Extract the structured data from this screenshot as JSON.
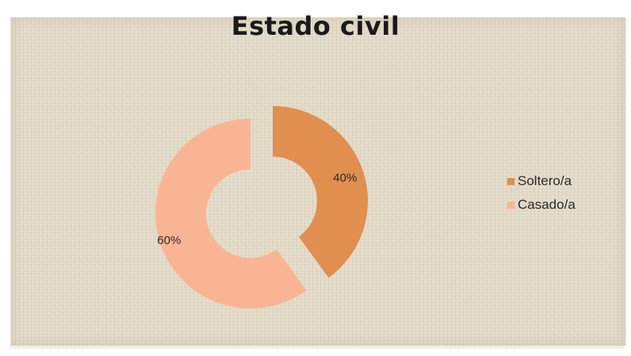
{
  "chart_data": {
    "type": "pie",
    "variant": "donut-exploded",
    "title": "Estado civil",
    "categories": [
      "Soltero/a",
      "Casado/a"
    ],
    "values": [
      40,
      60
    ],
    "labels": [
      "40%",
      "60%"
    ],
    "colors": [
      "#e08f4e",
      "#f9b593"
    ],
    "legend_position": "right"
  }
}
